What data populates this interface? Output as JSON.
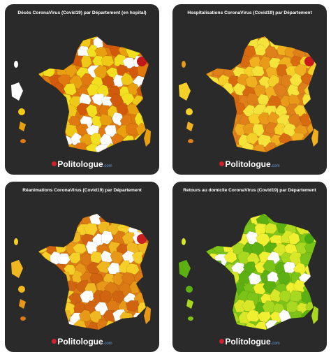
{
  "panels": [
    {
      "title": "Décès CoronaVirus (Covid19) par Département (en hopital)",
      "brand": "Politologue",
      "brand_suffix": ".com"
    },
    {
      "title": "Hospitalisations CoronaVirus (Covid19) par Département",
      "brand": "Politologue",
      "brand_suffix": ".com"
    },
    {
      "title": "Réanimations CoronaVirus (Covid19) par Département",
      "brand": "Politologue",
      "brand_suffix": ".com"
    },
    {
      "title": "Retours au domicile CoronaVirus (Covid19) par Département",
      "brand": "Politologue",
      "brand_suffix": ".com"
    }
  ]
}
